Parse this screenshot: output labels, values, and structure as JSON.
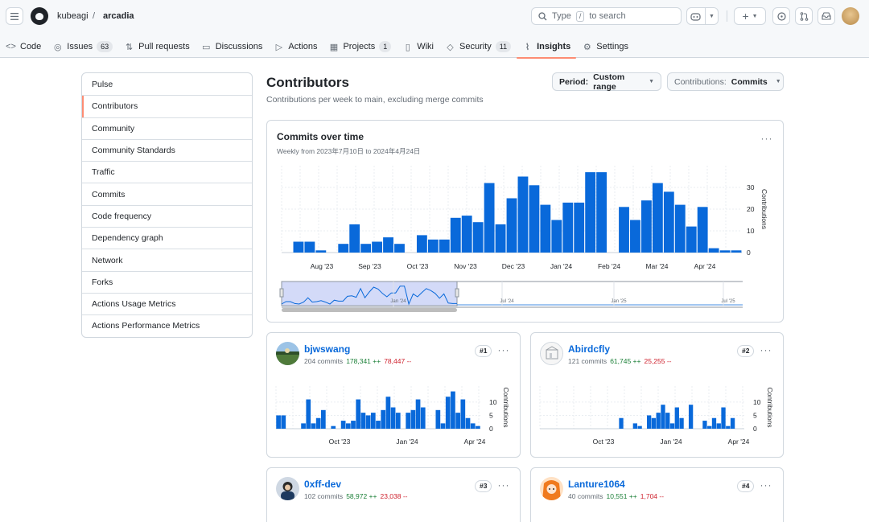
{
  "header": {
    "owner": "kubeagi",
    "separator": "/",
    "repo": "arcadia",
    "search_prefix": "Type",
    "search_key": "/",
    "search_suffix": "to search",
    "plus_label": "+"
  },
  "tabs": [
    {
      "label": "Code",
      "icon": "code-icon",
      "glyph": "<>",
      "count": ""
    },
    {
      "label": "Issues",
      "icon": "issue-icon",
      "glyph": "◎",
      "count": "63"
    },
    {
      "label": "Pull requests",
      "icon": "pull-request-icon",
      "glyph": "⇅",
      "count": ""
    },
    {
      "label": "Discussions",
      "icon": "discussions-icon",
      "glyph": "▭",
      "count": ""
    },
    {
      "label": "Actions",
      "icon": "play-icon",
      "glyph": "▷",
      "count": ""
    },
    {
      "label": "Projects",
      "icon": "table-icon",
      "glyph": "▦",
      "count": "1"
    },
    {
      "label": "Wiki",
      "icon": "book-icon",
      "glyph": "▯",
      "count": ""
    },
    {
      "label": "Security",
      "icon": "shield-icon",
      "glyph": "◇",
      "count": "11"
    },
    {
      "label": "Insights",
      "icon": "graph-icon",
      "glyph": "⌇",
      "count": ""
    },
    {
      "label": "Settings",
      "icon": "gear-icon",
      "glyph": "⚙",
      "count": ""
    }
  ],
  "sidebar": {
    "items": [
      {
        "label": "Pulse"
      },
      {
        "label": "Contributors"
      },
      {
        "label": "Community"
      },
      {
        "label": "Community Standards"
      },
      {
        "label": "Traffic"
      },
      {
        "label": "Commits"
      },
      {
        "label": "Code frequency"
      },
      {
        "label": "Dependency graph"
      },
      {
        "label": "Network"
      },
      {
        "label": "Forks"
      },
      {
        "label": "Actions Usage Metrics"
      },
      {
        "label": "Actions Performance Metrics"
      }
    ]
  },
  "page": {
    "title": "Contributors",
    "subtitle": "Contributions per week to main, excluding merge commits",
    "period_label": "Period:",
    "period_value": "Custom range",
    "contrib_label": "Contributions:",
    "contrib_value": "Commits"
  },
  "colors": {
    "accent": "#0969da",
    "bar": "#0969da",
    "add": "#1a7f37",
    "del": "#cf222e",
    "tab_underline": "#fd8c73"
  },
  "chart_data": [
    {
      "type": "bar",
      "title": "Commits over time",
      "subtitle": "Weekly from 2023年7月10日 to 2024年4月24日",
      "ylabel": "Contributions",
      "yticks": [
        0,
        10,
        20,
        30
      ],
      "ylim": [
        0,
        40
      ],
      "xtick_labels": [
        "Aug '23",
        "Sep '23",
        "Oct '23",
        "Nov '23",
        "Dec '23",
        "Jan '24",
        "Feb '24",
        "Mar '24",
        "Apr '24"
      ],
      "values": [
        0,
        5,
        5,
        1,
        0,
        4,
        13,
        4,
        5,
        7,
        4,
        0,
        8,
        6,
        6,
        16,
        17,
        14,
        32,
        13,
        25,
        35,
        31,
        22,
        15,
        23,
        23,
        37,
        37,
        0,
        21,
        15,
        24,
        32,
        28,
        22,
        12,
        21,
        2,
        1,
        1
      ],
      "brush_ticks": [
        "Jan '24",
        "Jul '24",
        "Jan '25",
        "Jul '25"
      ]
    },
    {
      "type": "bar",
      "contributor": "bjwswang",
      "rank": "#1",
      "commits": "204 commits",
      "additions": "178,341 ++",
      "deletions": "78,447 --",
      "ylabel": "Contributions",
      "yticks": [
        0,
        5,
        10
      ],
      "ylim": [
        0,
        16
      ],
      "xtick_labels": [
        "Oct '23",
        "Jan '24",
        "Apr '24"
      ],
      "values": [
        5,
        5,
        0,
        0,
        0,
        2,
        11,
        2,
        4,
        7,
        0,
        1,
        0,
        3,
        2,
        3,
        11,
        6,
        5,
        6,
        3,
        7,
        12,
        8,
        6,
        0,
        6,
        7,
        11,
        8,
        0,
        0,
        7,
        2,
        12,
        14,
        6,
        11,
        4,
        2,
        1
      ],
      "avatar": "landscape"
    },
    {
      "type": "bar",
      "contributor": "Abirdcfly",
      "rank": "#2",
      "commits": "121 commits",
      "additions": "61,745 ++",
      "deletions": "25,255 --",
      "ylabel": "Contributions",
      "yticks": [
        0,
        5,
        10
      ],
      "ylim": [
        0,
        16
      ],
      "xtick_labels": [
        "Oct '23",
        "Jan '24",
        "Apr '24"
      ],
      "values": [
        0,
        0,
        0,
        0,
        0,
        0,
        0,
        0,
        0,
        0,
        0,
        0,
        0,
        0,
        0,
        0,
        0,
        4,
        0,
        0,
        2,
        1,
        0,
        5,
        4,
        6,
        9,
        6,
        2,
        8,
        4,
        0,
        9,
        0,
        0,
        3,
        1,
        4,
        2,
        8,
        1,
        4,
        0,
        0
      ],
      "avatar": "sketch"
    },
    {
      "type": "bar",
      "contributor": "0xff-dev",
      "rank": "#3",
      "commits": "102 commits",
      "additions": "58,972 ++",
      "deletions": "23,038 --",
      "avatar": "portrait"
    },
    {
      "type": "bar",
      "contributor": "Lanture1064",
      "rank": "#4",
      "commits": "40 commits",
      "additions": "10,551 ++",
      "deletions": "1,704 --",
      "avatar": "anime"
    }
  ]
}
